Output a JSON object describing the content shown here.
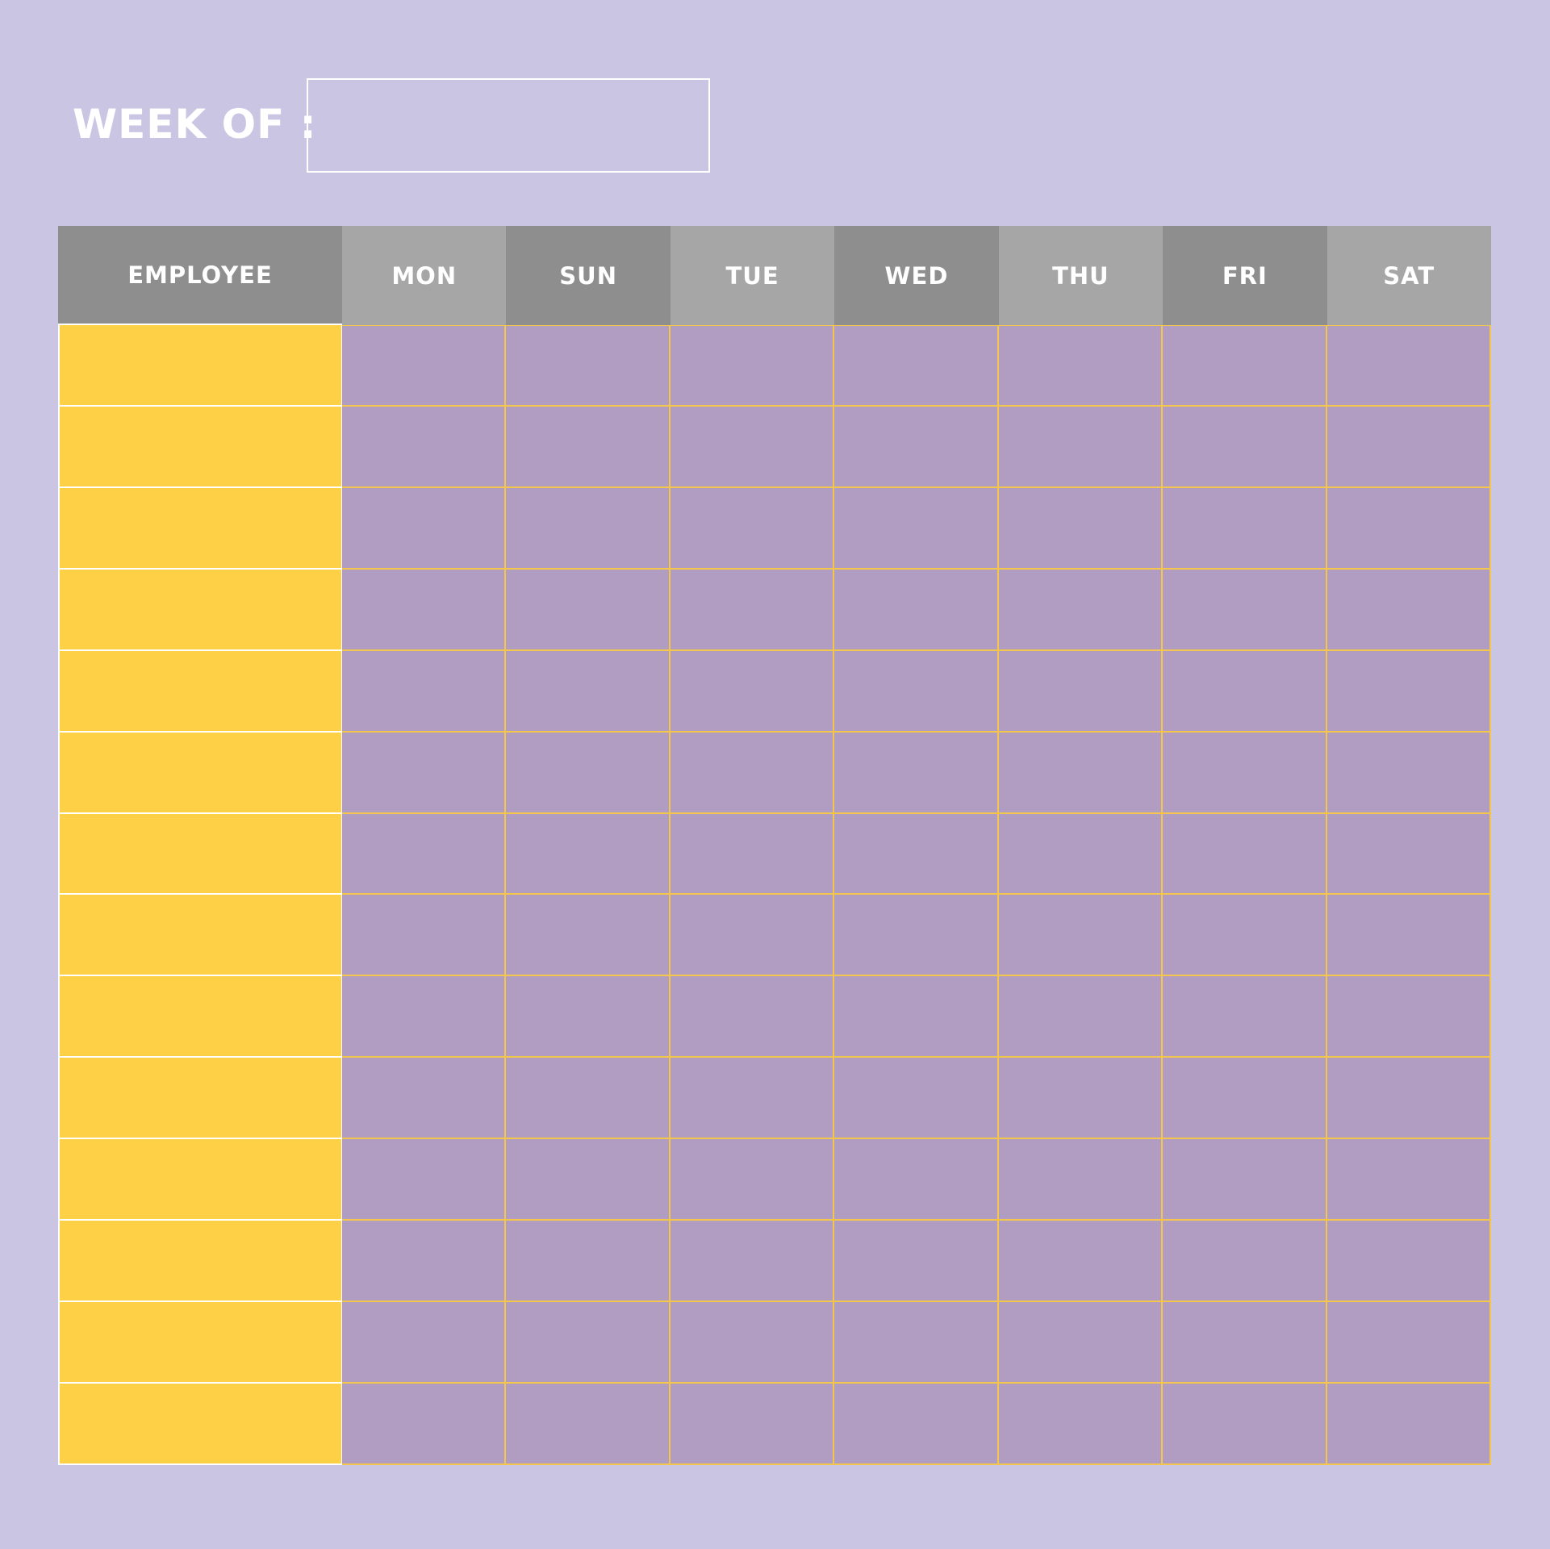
{
  "header": {
    "week_label": "WEEK OF :",
    "week_value": ""
  },
  "table": {
    "columns": [
      "EMPLOYEE",
      "MON",
      "SUN",
      "TUE",
      "WED",
      "THU",
      "FRI",
      "SAT"
    ],
    "row_count": 14
  },
  "colors": {
    "background": "#cac5e3",
    "header_dark": "#8e8e8e",
    "header_light": "#a6a6a6",
    "employee_cell": "#fed046",
    "day_cell": "#b19dc1",
    "grid_line": "#f5c64c"
  }
}
